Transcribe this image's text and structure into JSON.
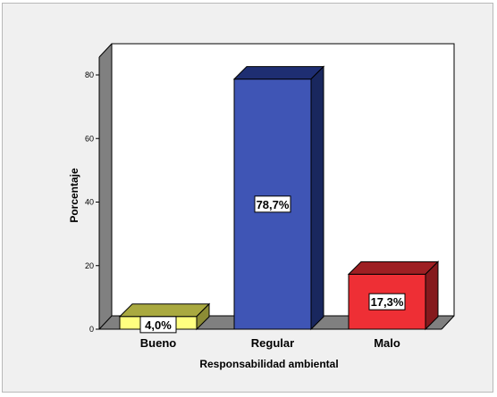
{
  "chart_data": {
    "type": "bar",
    "categories": [
      "Bueno",
      "Regular",
      "Malo"
    ],
    "values": [
      4.0,
      78.7,
      17.3
    ],
    "data_labels": [
      "4,0%",
      "78,7%",
      "17,3%"
    ],
    "xlabel": "Responsabilidad ambiental",
    "ylabel": "Porcentaje",
    "ylim": [
      0,
      80
    ],
    "yticks": [
      0,
      20,
      40,
      60,
      80
    ],
    "grid": false,
    "style": "3d",
    "colors": {
      "bars": [
        "#ffff80",
        "#3f55b5",
        "#ee2f35"
      ],
      "bar_tops": [
        "#a9a940",
        "#1e2e72",
        "#9e1f23"
      ],
      "bar_sides": [
        "#8c8c35",
        "#19275e",
        "#85191d"
      ],
      "walls": "#ffffff",
      "wall_shadow": "#808080",
      "background": "#f0f0f0"
    }
  }
}
